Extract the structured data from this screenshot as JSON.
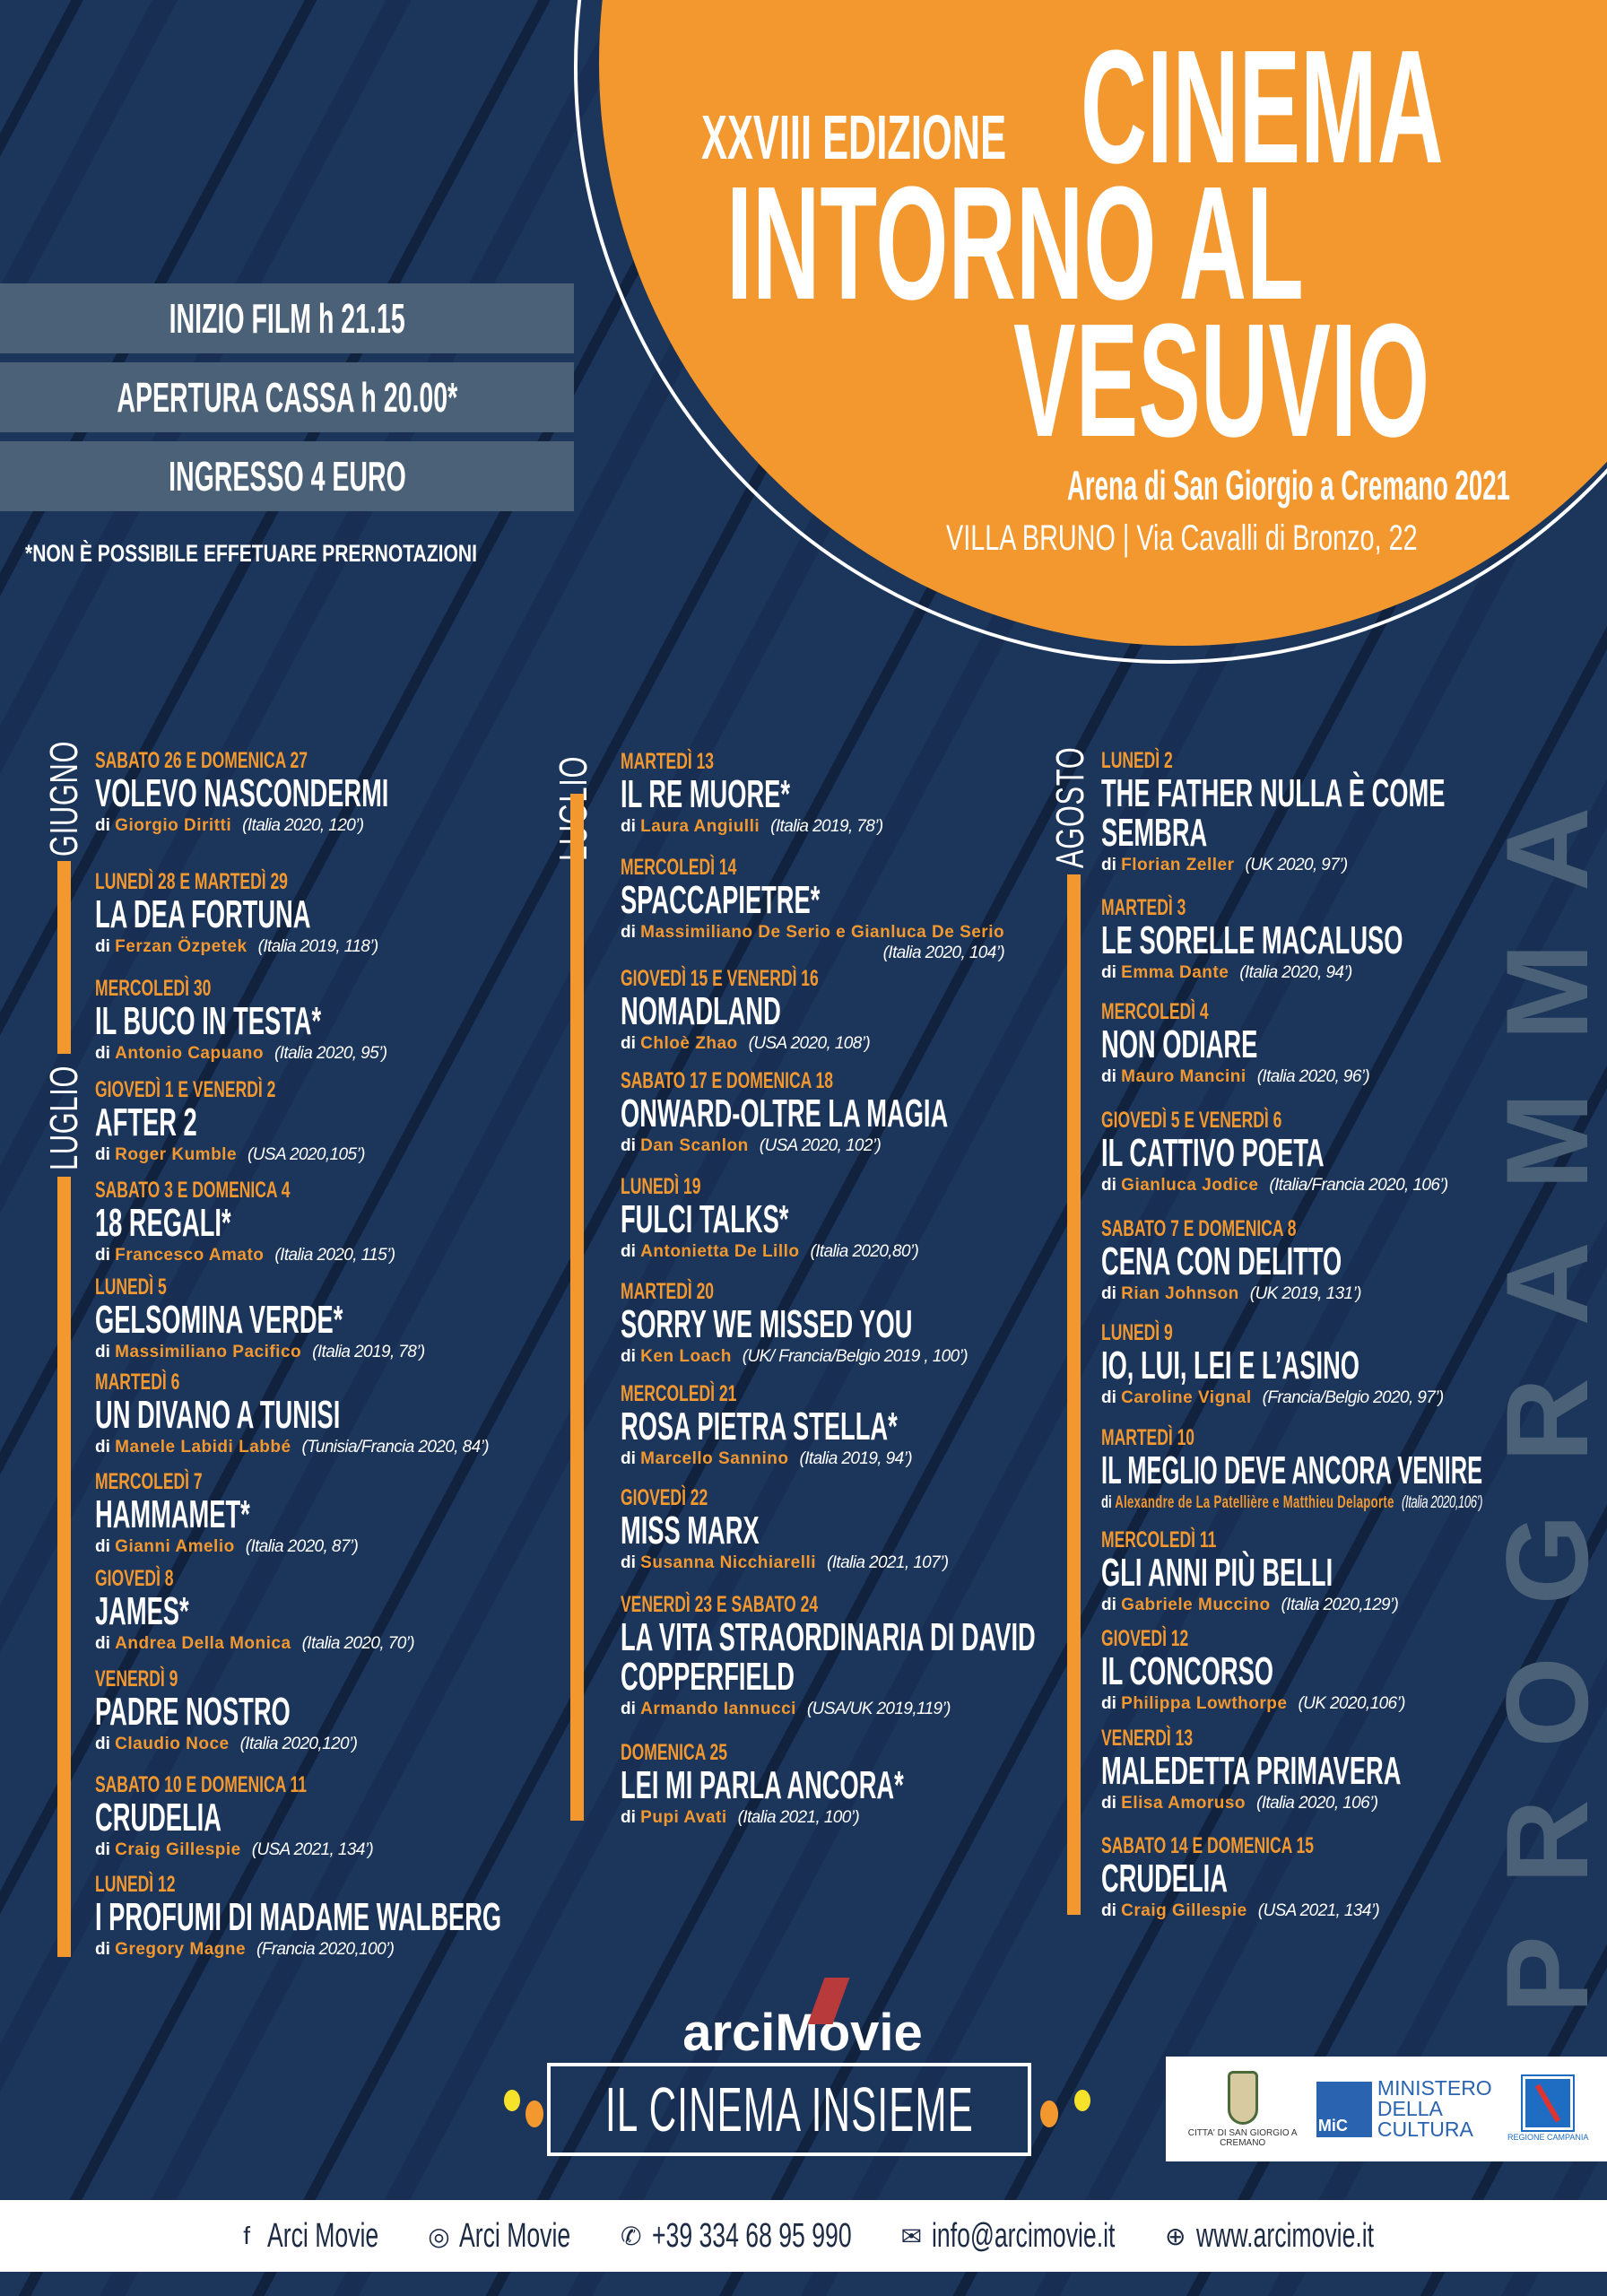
{
  "header": {
    "edition": "XXVIII EDIZIONE",
    "title_line1": "CINEMA",
    "title_line2": "INTORNO AL",
    "title_line3": "VESUVIO",
    "subtitle": "Arena di San Giorgio a Cremano 2021",
    "venue": "VILLA BRUNO | Via Cavalli di Bronzo, 22"
  },
  "info": {
    "start": "INIZIO FILM h 21.15",
    "box_office": "APERTURA CASSA h 20.00*",
    "entry": "INGRESSO 4 EURO",
    "note": "*NON È POSSIBILE EFFETUARE PRERNOTAZIONI"
  },
  "colors": {
    "accent": "#f3982f",
    "navy": "#1c355a",
    "slate": "#4b6178"
  },
  "side_label": "PROGRAMMA",
  "months": {
    "giugno": "GIUGNO",
    "luglio": "LUGLIO",
    "agosto": "AGOSTO"
  },
  "columns": [
    [
      {
        "date": "SABATO 26 E DOMENICA 27",
        "title": "VOLEVO NASCONDERMI",
        "di": "di",
        "director": "Giorgio Diritti",
        "info": "(Italia  2020, 120’)"
      },
      {
        "date": "LUNEDÌ 28 E MARTEDÌ 29",
        "title": "LA DEA FORTUNA",
        "di": "di",
        "director": "Ferzan Özpetek",
        "info": "(Italia 2019, 118’)"
      },
      {
        "date": "MERCOLEDÌ 30",
        "title": "IL BUCO IN TESTA*",
        "di": "di",
        "director": "Antonio Capuano",
        "info": "(Italia 2020, 95’)"
      },
      {
        "date": "GIOVEDÌ 1 E VENERDÌ 2",
        "title": "AFTER 2",
        "di": "di",
        "director": "Roger Kumble",
        "info": "(USA 2020,105’)"
      },
      {
        "date": "SABATO 3 E DOMENICA 4",
        "title": "18 REGALI*",
        "di": "di",
        "director": "Francesco Amato",
        "info": "(Italia 2020, 115’)"
      },
      {
        "date": "LUNEDÌ 5",
        "title": "GELSOMINA VERDE*",
        "di": "di",
        "director": "Massimiliano Pacifico",
        "info": "(Italia 2019, 78’)"
      },
      {
        "date": "MARTEDÌ 6",
        "title": "UN DIVANO A TUNISI",
        "di": "di",
        "director": "Manele Labidi Labbé",
        "info": "(Tunisia/Francia 2020, 84’)"
      },
      {
        "date": "MERCOLEDÌ 7",
        "title": "HAMMAMET*",
        "di": "di",
        "director": "Gianni Amelio",
        "info": "(Italia 2020, 87’)"
      },
      {
        "date": "GIOVEDÌ 8",
        "title": "JAMES*",
        "di": "di",
        "director": "Andrea Della Monica",
        "info": "(Italia 2020, 70’)"
      },
      {
        "date": "VENERDÌ 9",
        "title": "PADRE NOSTRO",
        "di": "di",
        "director": "Claudio Noce",
        "info": "(Italia 2020,120’)"
      },
      {
        "date": "SABATO 10 E DOMENICA 11",
        "title": "CRUDELIA",
        "di": "di",
        "director": "Craig Gillespie",
        "info": "(USA 2021, 134’)"
      },
      {
        "date": "LUNEDÌ 12",
        "title": "I PROFUMI DI MADAME WALBERG",
        "di": "di",
        "director": "Gregory Magne",
        "info": "(Francia 2020,100’)"
      }
    ],
    [
      {
        "date": "MARTEDÌ 13",
        "title": "IL RE MUORE*",
        "di": "di",
        "director": "Laura Angiulli",
        "info": "(Italia 2019, 78’)"
      },
      {
        "date": "MERCOLEDÌ 14",
        "title": "SPACCAPIETRE*",
        "di": "di",
        "director": "Massimiliano De Serio e Gianluca De Serio",
        "info": "(Italia 2020, 104’)"
      },
      {
        "date": "GIOVEDÌ 15 E VENERDÌ 16",
        "title": "NOMADLAND",
        "di": "di",
        "director": "Chloè Zhao",
        "info": "(USA 2020, 108’)"
      },
      {
        "date": "SABATO 17 E  DOMENICA 18",
        "title": "ONWARD-OLTRE LA MAGIA",
        "di": "di",
        "director": "Dan Scanlon",
        "info": "(USA  2020, 102’)"
      },
      {
        "date": "LUNEDÌ 19",
        "title": "FULCI TALKS*",
        "di": "di",
        "director": "Antonietta De Lillo",
        "info": "(Italia 2020,80’)"
      },
      {
        "date": "MARTEDÌ 20",
        "title": "SORRY WE MISSED YOU",
        "di": "di",
        "director": "Ken Loach",
        "info": "(UK/ Francia/Belgio 2019 , 100’)"
      },
      {
        "date": "MERCOLEDÌ 21",
        "title": "ROSA PIETRA STELLA*",
        "di": "di",
        "director": "Marcello Sannino",
        "info": "(Italia 2019, 94’)"
      },
      {
        "date": "GIOVEDÌ 22",
        "title": "MISS MARX",
        "di": "di",
        "director": "Susanna Nicchiarelli",
        "info": "(Italia 2021, 107’)"
      },
      {
        "date": "VENERDÌ 23 E SABATO 24",
        "title": "LA VITA STRAORDINARIA DI DAVID COPPERFIELD",
        "di": "di",
        "director": "Armando Iannucci",
        "info": "(USA/UK 2019,119’)"
      },
      {
        "date": "DOMENICA 25",
        "title": "LEI MI PARLA ANCORA*",
        "di": "di",
        "director": "Pupi Avati",
        "info": "(Italia 2021, 100’)"
      }
    ],
    [
      {
        "date": "LUNEDÌ 2",
        "title": "THE FATHER NULLA È COME SEMBRA",
        "di": "di",
        "director": "Florian Zeller",
        "info": "(UK 2020, 97’)"
      },
      {
        "date": "MARTEDÌ 3",
        "title": "LE SORELLE MACALUSO",
        "di": "di",
        "director": "Emma Dante",
        "info": "(Italia 2020, 94’)"
      },
      {
        "date": "MERCOLEDÌ 4",
        "title": "NON ODIARE",
        "di": "di",
        "director": "Mauro Mancini",
        "info": "(Italia 2020, 96’)"
      },
      {
        "date": "GIOVEDÌ 5 E VENERDÌ 6",
        "title": "IL CATTIVO POETA",
        "di": "di",
        "director": "Gianluca Jodice",
        "info": "(Italia/Francia 2020, 106’)"
      },
      {
        "date": "SABATO 7 E DOMENICA 8",
        "title": "CENA CON DELITTO",
        "di": "di",
        "director": "Rian Johnson",
        "info": "(UK 2019, 131’)"
      },
      {
        "date": "LUNEDÌ 9",
        "title": "IO, LUI, LEI E L’ASINO",
        "di": "di",
        "director": "Caroline Vignal",
        "info": "(Francia/Belgio 2020, 97’)"
      },
      {
        "date": "MARTEDÌ 10",
        "title": "IL MEGLIO DEVE ANCORA VENIRE",
        "di": "di",
        "director": "Alexandre de La Patellière e Matthieu Delaporte",
        "info": "(Italia 2020,106’)"
      },
      {
        "date": "MERCOLEDÌ 11",
        "title": "GLI ANNI PIÙ BELLI",
        "di": "di",
        "director": "Gabriele Muccino",
        "info": "(Italia  2020,129’)"
      },
      {
        "date": "GIOVEDÌ 12",
        "title": "IL CONCORSO",
        "di": "di",
        "director": "Philippa Lowthorpe",
        "info": "(UK  2020,106’)"
      },
      {
        "date": "VENERDÌ 13",
        "title": "MALEDETTA PRIMAVERA",
        "di": "di",
        "director": "Elisa Amoruso",
        "info": "(Italia  2020,  106’)"
      },
      {
        "date": "SABATO 14 E DOMENICA 15",
        "title": "CRUDELIA",
        "di": "di",
        "director": "Craig Gillespie",
        "info": "(USA 2021, 134’)"
      }
    ]
  ],
  "branding": {
    "organizer": "arciMovie",
    "slogan": "IL CINEMA INSIEME",
    "partners": {
      "city": "CITTA' DI SAN GIORGIO A CREMANO",
      "ministry_l1": "MINISTERO",
      "ministry_l2": "DELLA",
      "ministry_l3": "CULTURA",
      "ministry_abbr": "MiC",
      "region": "REGIONE CAMPANIA"
    }
  },
  "footer": [
    {
      "icon": "facebook-icon",
      "label": "Arci Movie"
    },
    {
      "icon": "instagram-icon",
      "label": "Arci Movie"
    },
    {
      "icon": "phone-icon",
      "label": "+39 334 68 95 990"
    },
    {
      "icon": "mail-icon",
      "label": "info@arcimovie.it"
    },
    {
      "icon": "globe-icon",
      "label": "www.arcimovie.it"
    }
  ]
}
